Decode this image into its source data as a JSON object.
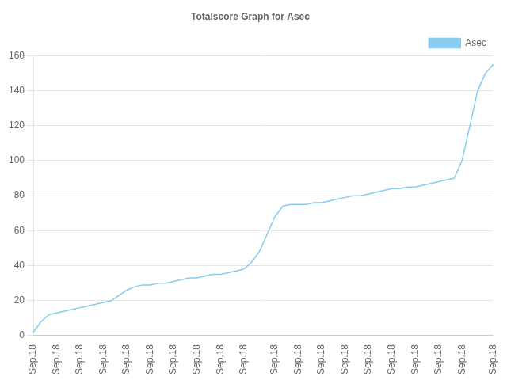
{
  "chart_data": {
    "type": "line",
    "title": "Totalscore Graph for Asec",
    "categories": [
      "Sep.18",
      null,
      null,
      "Sep.18",
      null,
      null,
      "Sep.18",
      null,
      null,
      "Sep.18",
      null,
      null,
      "Sep.18",
      null,
      null,
      "Sep.18",
      null,
      null,
      "Sep.18",
      null,
      null,
      "Sep.18",
      null,
      null,
      "Sep.18",
      null,
      null,
      "Sep.18",
      null,
      null,
      null,
      "Sep.18",
      null,
      null,
      "Sep.18",
      null,
      null,
      "Sep.18",
      null,
      null,
      "Sep.18",
      null,
      null,
      "Sep.18",
      null,
      null,
      "Sep.18",
      null,
      null,
      "Sep.18",
      null,
      null,
      "Sep.18",
      null,
      null,
      "Sep.18",
      null,
      null,
      null,
      "Sep.18"
    ],
    "series": [
      {
        "name": "Asec",
        "color": "#88ccee",
        "values": [
          2,
          8,
          12,
          13,
          14,
          15,
          16,
          17,
          18,
          19,
          20,
          23,
          26,
          28,
          29,
          29,
          30,
          30,
          31,
          32,
          33,
          33,
          34,
          35,
          35,
          36,
          37,
          38,
          42,
          48,
          58,
          68,
          74,
          75,
          75,
          75,
          76,
          76,
          77,
          78,
          79,
          80,
          80,
          81,
          82,
          83,
          84,
          84,
          85,
          85,
          86,
          87,
          88,
          89,
          90,
          100,
          120,
          140,
          150,
          155
        ]
      }
    ],
    "ylim": [
      0,
      160
    ],
    "yticks": [
      0,
      20,
      40,
      60,
      80,
      100,
      120,
      140,
      160
    ],
    "grid": "y",
    "legend": "upper right"
  }
}
